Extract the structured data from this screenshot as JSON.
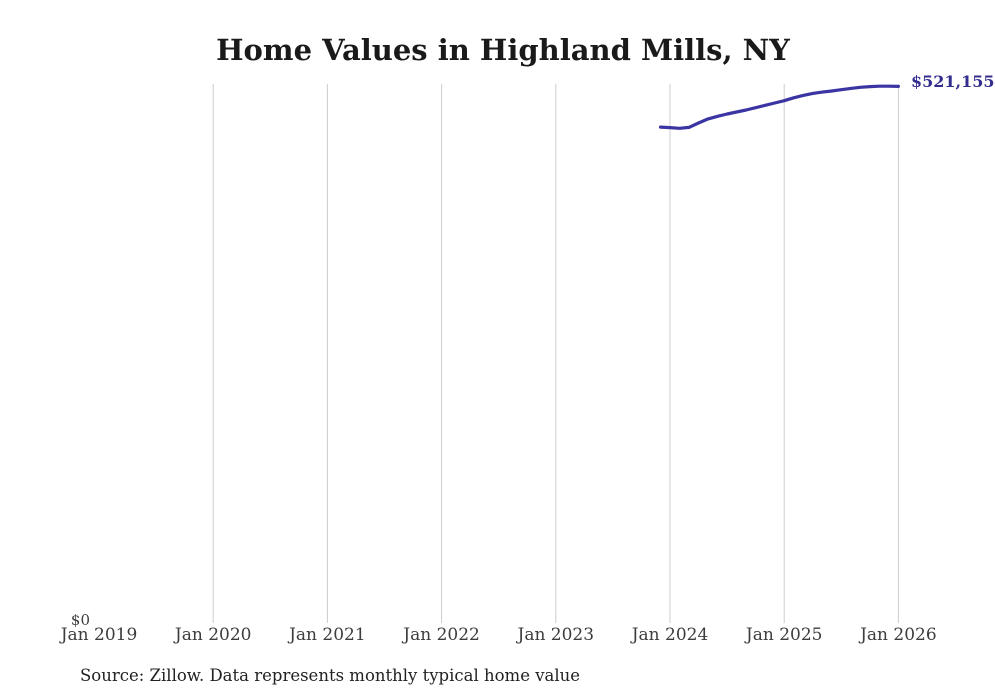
{
  "title": "Home Values in Highland Mills, NY",
  "source_note": "Source: Zillow. Data represents monthly typical home value",
  "chart_data": {
    "type": "line",
    "title": "Home Values in Highland Mills, NY",
    "series_name": "Monthly typical home value",
    "months": [
      "2023-12",
      "2024-01",
      "2024-02",
      "2024-03",
      "2024-04",
      "2024-05",
      "2024-06",
      "2024-07",
      "2024-08",
      "2024-09",
      "2024-10",
      "2024-11",
      "2024-12",
      "2025-01",
      "2025-02",
      "2025-03",
      "2025-04",
      "2025-05",
      "2025-06",
      "2025-07",
      "2025-08",
      "2025-09",
      "2025-10",
      "2025-11",
      "2025-12",
      "2026-01"
    ],
    "values": [
      481400,
      481000,
      480300,
      481200,
      485400,
      489400,
      492000,
      494200,
      496200,
      498100,
      500400,
      502700,
      505000,
      507200,
      510000,
      512400,
      514300,
      515600,
      516700,
      517900,
      519200,
      520300,
      521000,
      521400,
      521400,
      521155
    ],
    "x_ticks": [
      "Jan 2019",
      "Jan 2020",
      "Jan 2021",
      "Jan 2022",
      "Jan 2023",
      "Jan 2024",
      "Jan 2025",
      "Jan 2026"
    ],
    "y_zero_label": "$0",
    "end_label": "$521,155",
    "ylim": [
      0,
      523500
    ],
    "grid": "vertical-only",
    "legend": "none",
    "line_color": "#3b35a4",
    "label_color": "#332d8e",
    "grid_color": "#cccccc"
  }
}
